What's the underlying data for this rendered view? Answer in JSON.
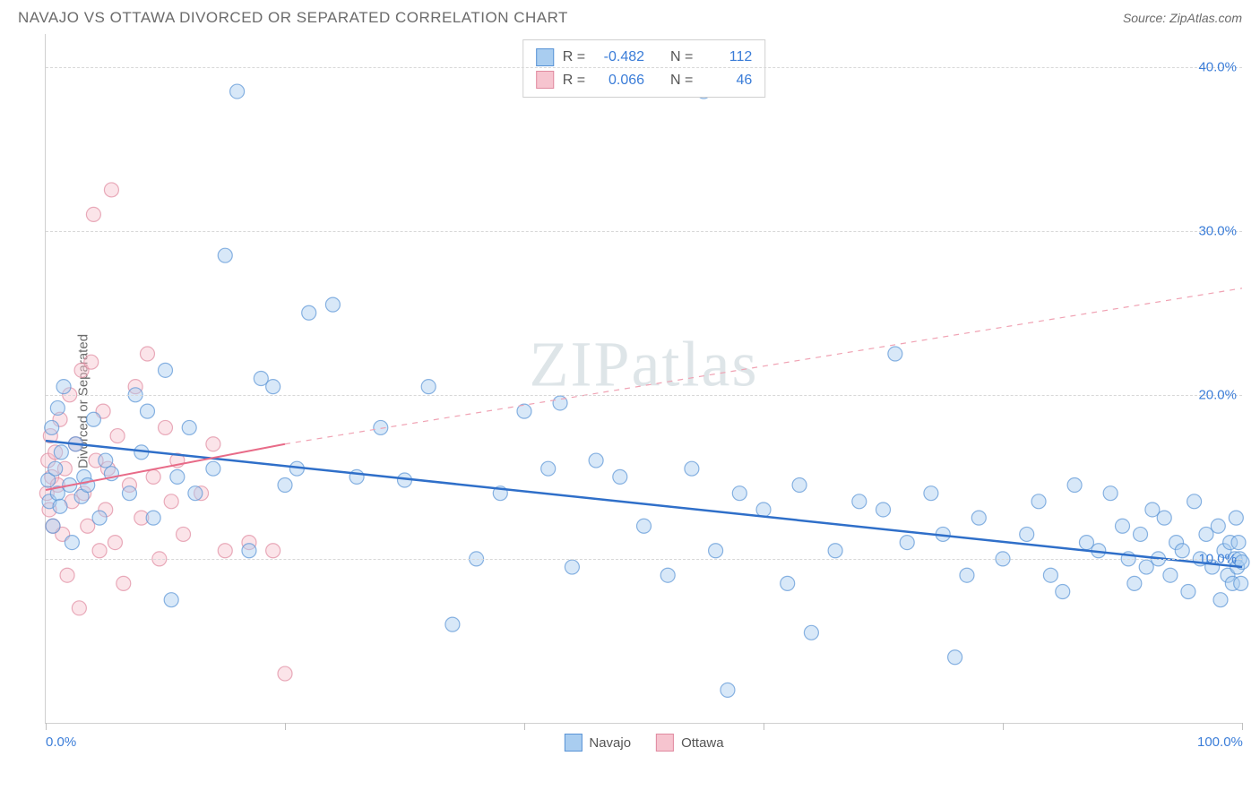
{
  "title": "NAVAJO VS OTTAWA DIVORCED OR SEPARATED CORRELATION CHART",
  "source_prefix": "Source: ",
  "source_name": "ZipAtlas.com",
  "ylabel": "Divorced or Separated",
  "watermark_a": "ZIP",
  "watermark_b": "atlas",
  "chart": {
    "type": "scatter",
    "xlim": [
      0,
      100
    ],
    "ylim": [
      0,
      42
    ],
    "yticks": [
      10,
      20,
      30,
      40
    ],
    "ytick_labels": [
      "10.0%",
      "20.0%",
      "30.0%",
      "40.0%"
    ],
    "xticks": [
      0,
      20,
      40,
      60,
      80,
      100
    ],
    "xtick_labels": {
      "0": "0.0%",
      "100": "100.0%"
    },
    "grid_color": "#d8d8d8",
    "background_color": "#ffffff",
    "marker_radius": 8,
    "marker_opacity": 0.45,
    "series": [
      {
        "name": "Navajo",
        "color_fill": "#a9cdf0",
        "color_stroke": "#5a94d6",
        "R": "-0.482",
        "N": "112",
        "regression": {
          "y_at_x0": 17.2,
          "y_at_x100": 9.5,
          "style": "solid",
          "width": 2.5,
          "color": "#2f6fc9"
        },
        "points": [
          [
            0.2,
            14.8
          ],
          [
            0.3,
            13.5
          ],
          [
            0.5,
            18.0
          ],
          [
            0.6,
            12.0
          ],
          [
            0.8,
            15.5
          ],
          [
            1.0,
            14.0
          ],
          [
            1.0,
            19.2
          ],
          [
            1.2,
            13.2
          ],
          [
            1.3,
            16.5
          ],
          [
            1.5,
            20.5
          ],
          [
            2.0,
            14.5
          ],
          [
            2.2,
            11.0
          ],
          [
            2.5,
            17.0
          ],
          [
            3.0,
            13.8
          ],
          [
            3.2,
            15.0
          ],
          [
            3.5,
            14.5
          ],
          [
            4.0,
            18.5
          ],
          [
            4.5,
            12.5
          ],
          [
            5.0,
            16.0
          ],
          [
            5.5,
            15.2
          ],
          [
            7.0,
            14.0
          ],
          [
            7.5,
            20.0
          ],
          [
            8.0,
            16.5
          ],
          [
            8.5,
            19.0
          ],
          [
            9.0,
            12.5
          ],
          [
            10.0,
            21.5
          ],
          [
            10.5,
            7.5
          ],
          [
            11.0,
            15.0
          ],
          [
            12.0,
            18.0
          ],
          [
            12.5,
            14.0
          ],
          [
            14.0,
            15.5
          ],
          [
            15.0,
            28.5
          ],
          [
            16.0,
            38.5
          ],
          [
            17.0,
            10.5
          ],
          [
            18.0,
            21.0
          ],
          [
            19.0,
            20.5
          ],
          [
            20.0,
            14.5
          ],
          [
            21.0,
            15.5
          ],
          [
            22.0,
            25.0
          ],
          [
            24.0,
            25.5
          ],
          [
            26.0,
            15.0
          ],
          [
            28.0,
            18.0
          ],
          [
            30.0,
            14.8
          ],
          [
            32.0,
            20.5
          ],
          [
            34.0,
            6.0
          ],
          [
            36.0,
            10.0
          ],
          [
            38.0,
            14.0
          ],
          [
            40.0,
            19.0
          ],
          [
            42.0,
            15.5
          ],
          [
            43.0,
            19.5
          ],
          [
            44.0,
            9.5
          ],
          [
            46.0,
            16.0
          ],
          [
            48.0,
            15.0
          ],
          [
            50.0,
            12.0
          ],
          [
            52.0,
            9.0
          ],
          [
            54.0,
            15.5
          ],
          [
            55.0,
            38.5
          ],
          [
            56.0,
            10.5
          ],
          [
            57.0,
            2.0
          ],
          [
            58.0,
            14.0
          ],
          [
            60.0,
            13.0
          ],
          [
            62.0,
            8.5
          ],
          [
            63.0,
            14.5
          ],
          [
            64.0,
            5.5
          ],
          [
            66.0,
            10.5
          ],
          [
            68.0,
            13.5
          ],
          [
            70.0,
            13.0
          ],
          [
            71.0,
            22.5
          ],
          [
            72.0,
            11.0
          ],
          [
            74.0,
            14.0
          ],
          [
            75.0,
            11.5
          ],
          [
            76.0,
            4.0
          ],
          [
            77.0,
            9.0
          ],
          [
            78.0,
            12.5
          ],
          [
            80.0,
            10.0
          ],
          [
            82.0,
            11.5
          ],
          [
            83.0,
            13.5
          ],
          [
            84.0,
            9.0
          ],
          [
            85.0,
            8.0
          ],
          [
            86.0,
            14.5
          ],
          [
            87.0,
            11.0
          ],
          [
            88.0,
            10.5
          ],
          [
            89.0,
            14.0
          ],
          [
            90.0,
            12.0
          ],
          [
            90.5,
            10.0
          ],
          [
            91.0,
            8.5
          ],
          [
            91.5,
            11.5
          ],
          [
            92.0,
            9.5
          ],
          [
            92.5,
            13.0
          ],
          [
            93.0,
            10.0
          ],
          [
            93.5,
            12.5
          ],
          [
            94.0,
            9.0
          ],
          [
            94.5,
            11.0
          ],
          [
            95.0,
            10.5
          ],
          [
            95.5,
            8.0
          ],
          [
            96.0,
            13.5
          ],
          [
            96.5,
            10.0
          ],
          [
            97.0,
            11.5
          ],
          [
            97.5,
            9.5
          ],
          [
            98.0,
            12.0
          ],
          [
            98.2,
            7.5
          ],
          [
            98.5,
            10.5
          ],
          [
            98.8,
            9.0
          ],
          [
            99.0,
            11.0
          ],
          [
            99.2,
            8.5
          ],
          [
            99.4,
            10.0
          ],
          [
            99.5,
            12.5
          ],
          [
            99.6,
            9.5
          ],
          [
            99.7,
            11.0
          ],
          [
            99.8,
            10.0
          ],
          [
            99.9,
            8.5
          ],
          [
            100.0,
            9.8
          ]
        ]
      },
      {
        "name": "Ottawa",
        "color_fill": "#f6c4cf",
        "color_stroke": "#e08aa0",
        "R": "0.066",
        "N": "46",
        "regression": {
          "solid": {
            "y_at_x0": 14.2,
            "y_at_x20": 17.0,
            "style": "solid",
            "width": 2,
            "color": "#e86b88"
          },
          "dashed": {
            "y_at_x20": 17.0,
            "y_at_x100": 26.5,
            "style": "dashed",
            "width": 1.2,
            "color": "#f0a2b3"
          }
        },
        "points": [
          [
            0.1,
            14.0
          ],
          [
            0.2,
            16.0
          ],
          [
            0.3,
            13.0
          ],
          [
            0.4,
            17.5
          ],
          [
            0.5,
            15.0
          ],
          [
            0.6,
            12.0
          ],
          [
            0.8,
            16.5
          ],
          [
            1.0,
            14.5
          ],
          [
            1.2,
            18.5
          ],
          [
            1.4,
            11.5
          ],
          [
            1.6,
            15.5
          ],
          [
            1.8,
            9.0
          ],
          [
            2.0,
            20.0
          ],
          [
            2.2,
            13.5
          ],
          [
            2.5,
            17.0
          ],
          [
            2.8,
            7.0
          ],
          [
            3.0,
            21.5
          ],
          [
            3.2,
            14.0
          ],
          [
            3.5,
            12.0
          ],
          [
            3.8,
            22.0
          ],
          [
            4.0,
            31.0
          ],
          [
            4.2,
            16.0
          ],
          [
            4.5,
            10.5
          ],
          [
            4.8,
            19.0
          ],
          [
            5.0,
            13.0
          ],
          [
            5.2,
            15.5
          ],
          [
            5.5,
            32.5
          ],
          [
            5.8,
            11.0
          ],
          [
            6.0,
            17.5
          ],
          [
            6.5,
            8.5
          ],
          [
            7.0,
            14.5
          ],
          [
            7.5,
            20.5
          ],
          [
            8.0,
            12.5
          ],
          [
            8.5,
            22.5
          ],
          [
            9.0,
            15.0
          ],
          [
            9.5,
            10.0
          ],
          [
            10.0,
            18.0
          ],
          [
            10.5,
            13.5
          ],
          [
            11.0,
            16.0
          ],
          [
            11.5,
            11.5
          ],
          [
            13.0,
            14.0
          ],
          [
            14.0,
            17.0
          ],
          [
            15.0,
            10.5
          ],
          [
            17.0,
            11.0
          ],
          [
            19.0,
            10.5
          ],
          [
            20.0,
            3.0
          ]
        ]
      }
    ]
  },
  "stats_labels": {
    "R": "R =",
    "N": "N ="
  },
  "legend": [
    {
      "name": "Navajo",
      "fill": "#a9cdf0",
      "stroke": "#5a94d6"
    },
    {
      "name": "Ottawa",
      "fill": "#f6c4cf",
      "stroke": "#e08aa0"
    }
  ]
}
